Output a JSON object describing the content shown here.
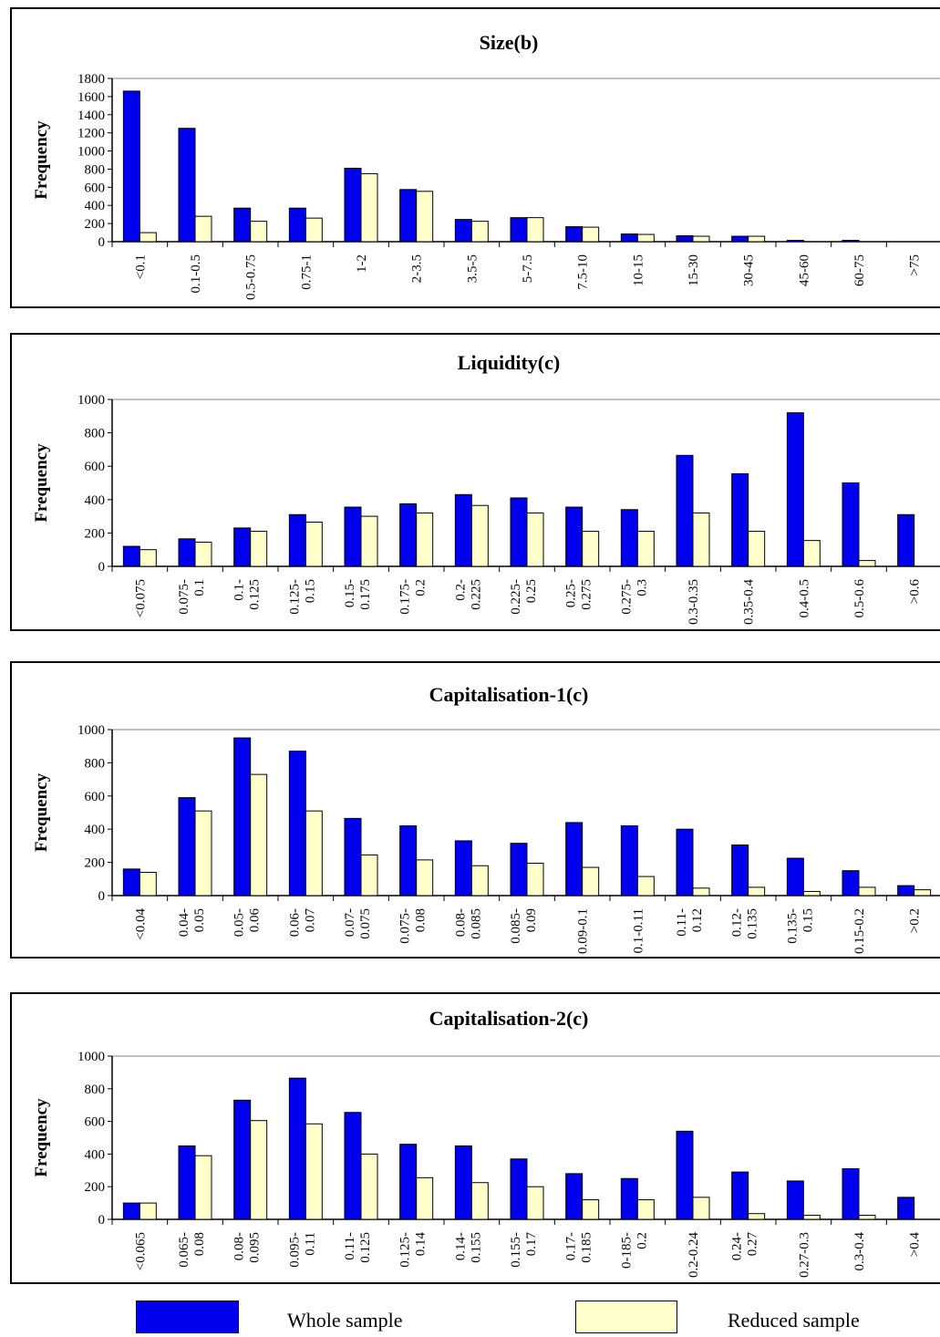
{
  "legend": {
    "whole": {
      "label": "Whole sample",
      "color": "#0000ee"
    },
    "reduced": {
      "label": "Reduced sample",
      "color": "#ffffcc"
    }
  },
  "chart_data": [
    {
      "type": "bar",
      "title": "Size(b)",
      "ylabel": "Frequency",
      "xlabel": "",
      "ylim": [
        0,
        1800
      ],
      "yticks": [
        0,
        200,
        400,
        600,
        800,
        1000,
        1200,
        1400,
        1600,
        1800
      ],
      "categories": [
        "<0.1",
        "0.1-0.5",
        "0.5-0.75",
        "0.75-1",
        "1-2",
        "2-3.5",
        "3.5-5",
        "5-7.5",
        "7.5-10",
        "10-15",
        "15-30",
        "30-45",
        "45-60",
        "60-75",
        ">75"
      ],
      "series": [
        {
          "name": "Whole sample",
          "values": [
            1660,
            1250,
            370,
            370,
            810,
            575,
            245,
            265,
            165,
            85,
            65,
            60,
            15,
            15,
            0
          ]
        },
        {
          "name": "Reduced sample",
          "values": [
            100,
            280,
            225,
            260,
            750,
            555,
            225,
            265,
            160,
            80,
            60,
            60,
            0,
            0,
            0
          ]
        }
      ]
    },
    {
      "type": "bar",
      "title": "Liquidity(c)",
      "ylabel": "Frequency",
      "xlabel": "",
      "ylim": [
        0,
        1000
      ],
      "yticks": [
        0,
        200,
        400,
        600,
        800,
        1000
      ],
      "categories": [
        "<0.075",
        "0.075-\n0.1",
        "0.1-\n0.125",
        "0.125-\n0.15",
        "0.15-\n0.175",
        "0.175-\n0.2",
        "0.2-\n0.225",
        "0.225-\n0.25",
        "0.25-\n0.275",
        "0.275-\n0.3",
        "0.3-0.35",
        "0.35-0.4",
        "0.4-0.5",
        "0.5-0.6",
        ">0.6"
      ],
      "series": [
        {
          "name": "Whole sample",
          "values": [
            120,
            165,
            230,
            310,
            355,
            375,
            430,
            410,
            355,
            340,
            665,
            555,
            920,
            500,
            310
          ]
        },
        {
          "name": "Reduced sample",
          "values": [
            100,
            145,
            210,
            265,
            300,
            320,
            365,
            320,
            210,
            210,
            320,
            210,
            155,
            35,
            0
          ]
        }
      ]
    },
    {
      "type": "bar",
      "title": "Capitalisation-1(c)",
      "ylabel": "Frequency",
      "xlabel": "",
      "ylim": [
        0,
        1000
      ],
      "yticks": [
        0,
        200,
        400,
        600,
        800,
        1000
      ],
      "categories": [
        "<0.04",
        "0.04-\n0.05",
        "0.05-\n0.06",
        "0.06-\n0.07",
        "0.07-\n0.075",
        "0.075-\n0.08",
        "0.08-\n0.085",
        "0.085-\n0.09",
        "0.09-0.1",
        "0.1-0.11",
        "0.11-\n0.12",
        "0.12-\n0.135",
        "0.135-\n0.15",
        "0.15-0.2",
        ">0.2"
      ],
      "series": [
        {
          "name": "Whole sample",
          "values": [
            160,
            590,
            950,
            870,
            465,
            420,
            330,
            315,
            440,
            420,
            400,
            305,
            225,
            150,
            60
          ]
        },
        {
          "name": "Reduced sample",
          "values": [
            140,
            510,
            730,
            510,
            245,
            215,
            180,
            195,
            170,
            115,
            45,
            50,
            25,
            50,
            35
          ]
        }
      ]
    },
    {
      "type": "bar",
      "title": "Capitalisation-2(c)",
      "ylabel": "Frequency",
      "xlabel": "",
      "ylim": [
        0,
        1000
      ],
      "yticks": [
        0,
        200,
        400,
        600,
        800,
        1000
      ],
      "categories": [
        "<0.065",
        "0.065-\n0.08",
        "0.08-\n0.095",
        "0.095-\n0.11",
        "0.11-\n0.125",
        "0.125-\n0.14",
        "0.14-\n0.155",
        "0.155-\n0.17",
        "0.17-\n0.185",
        "0-185-\n0.2",
        "0.2-0.24",
        "0.24-\n0.27",
        "0.27-0.3",
        "0.3-0.4",
        ">0.4"
      ],
      "series": [
        {
          "name": "Whole sample",
          "values": [
            100,
            450,
            730,
            865,
            655,
            460,
            450,
            370,
            280,
            250,
            540,
            290,
            235,
            310,
            135
          ]
        },
        {
          "name": "Reduced sample",
          "values": [
            100,
            390,
            605,
            585,
            400,
            255,
            225,
            200,
            120,
            120,
            135,
            35,
            25,
            25,
            0
          ]
        }
      ]
    }
  ]
}
